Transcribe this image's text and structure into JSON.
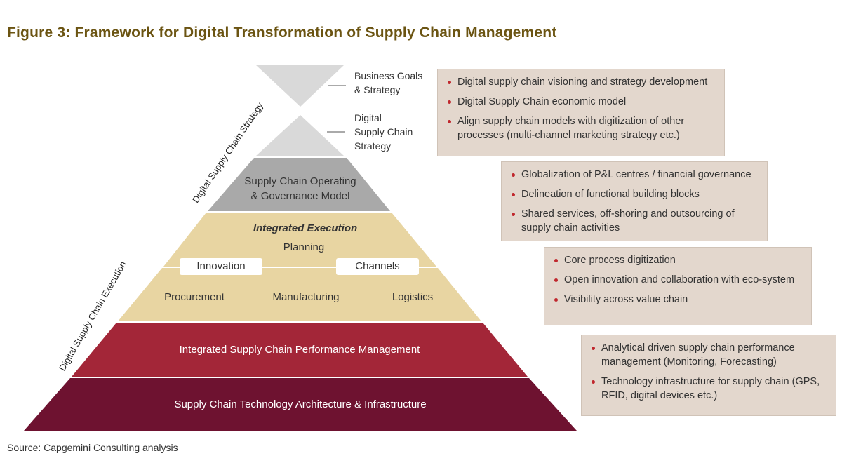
{
  "title": "Figure 3: Framework for Digital Transformation of Supply Chain Management",
  "source": "Source: Capgemini Consulting analysis",
  "colors": {
    "hourglass": "#d9d9d9",
    "governance": "#a9a9a9",
    "integrated_execution": "#e8d5a2",
    "performance": "#a32638",
    "technology": "#6e1230",
    "callout_box": "#e3d7cd",
    "bullet": "#c0272d",
    "title": "#6b5412"
  },
  "side_labels": {
    "strategy": "Digital Supply Chain Strategy",
    "execution": "Digital Supply Chain Execution"
  },
  "callouts": {
    "business_goals_line1": "Business Goals",
    "business_goals_line2": "& Strategy",
    "digital_strategy_line1": "Digital",
    "digital_strategy_line2": "Supply Chain",
    "digital_strategy_line3": "Strategy"
  },
  "layers": {
    "governance_line1": "Supply Chain Operating",
    "governance_line2": "& Governance Model",
    "integrated_execution": "Integrated Execution",
    "planning": "Planning",
    "innovation": "Innovation",
    "channels": "Channels",
    "procurement": "Procurement",
    "manufacturing": "Manufacturing",
    "logistics": "Logistics",
    "performance": "Integrated Supply Chain Performance Management",
    "technology": "Supply Chain Technology Architecture & Infrastructure"
  },
  "boxes": {
    "strategy": [
      "Digital supply chain visioning and strategy development",
      "Digital Supply Chain economic model",
      "Align supply chain models with digitization of other processes (multi-channel marketing strategy etc.)"
    ],
    "governance": [
      "Globalization of P&L centres / financial governance",
      "Delineation of functional building blocks",
      "Shared services, off-shoring and outsourcing of supply chain activities"
    ],
    "execution": [
      "Core process digitization",
      "Open innovation and collaboration with eco-system",
      "Visibility across value chain"
    ],
    "performance": [
      "Analytical driven supply chain performance management (Monitoring, Forecasting)",
      "Technology infrastructure for supply chain (GPS, RFID, digital devices etc.)"
    ]
  }
}
